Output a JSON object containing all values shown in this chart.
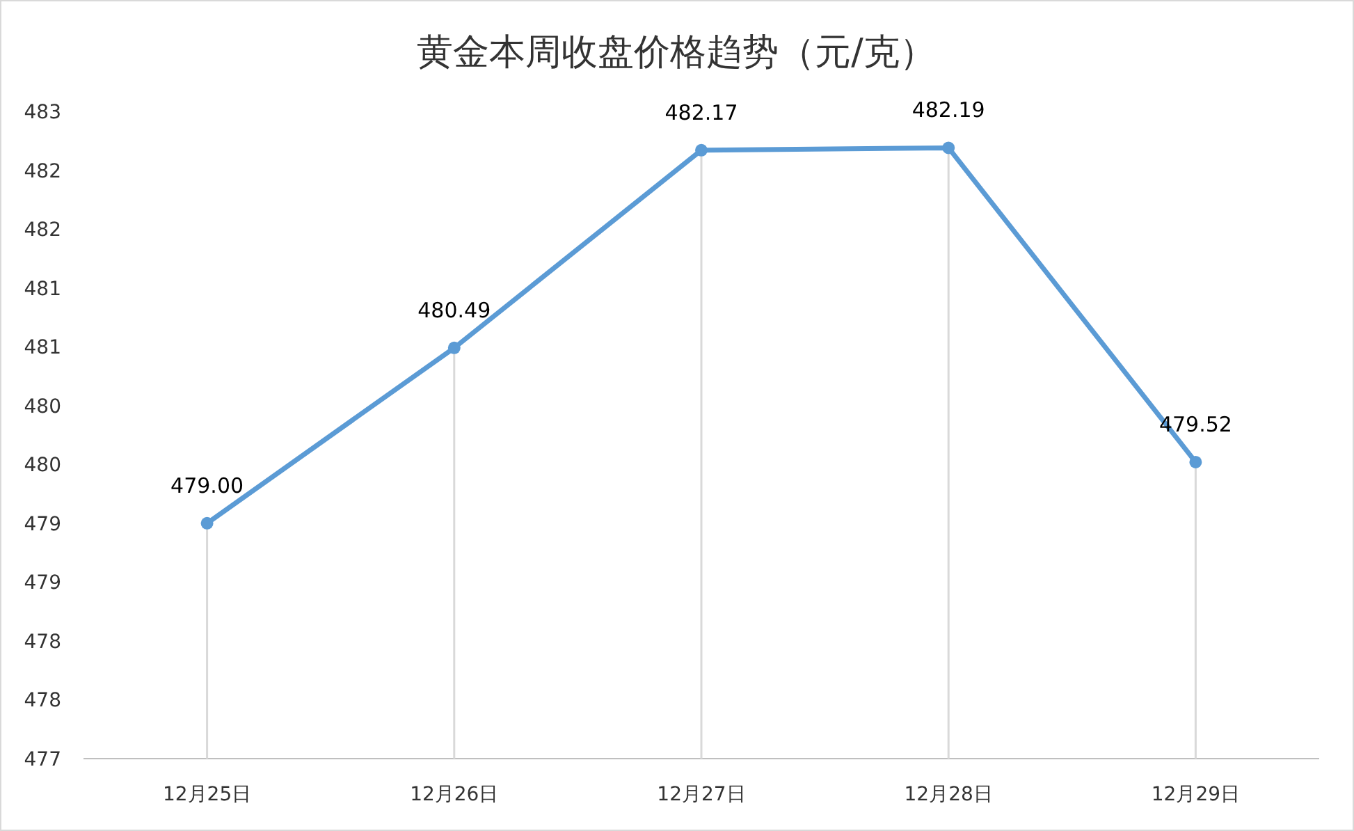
{
  "chart_data": {
    "type": "line",
    "title": "黄金本周收盘价格趋势（元/克）",
    "categories": [
      "12月25日",
      "12月26日",
      "12月27日",
      "12月28日",
      "12月29日"
    ],
    "series": [
      {
        "color": "#5b9bd5",
        "values": [
          479.0,
          480.49,
          482.17,
          482.19,
          479.52
        ]
      }
    ],
    "ylim": [
      477,
      482.5
    ],
    "yticks": [
      {
        "value": 477,
        "label": "477"
      },
      {
        "value": 477.5,
        "label": "478"
      },
      {
        "value": 478,
        "label": "478"
      },
      {
        "value": 478.5,
        "label": "479"
      },
      {
        "value": 479,
        "label": "479"
      },
      {
        "value": 479.5,
        "label": "480"
      },
      {
        "value": 480,
        "label": "480"
      },
      {
        "value": 480.5,
        "label": "481"
      },
      {
        "value": 481,
        "label": "481"
      },
      {
        "value": 481.5,
        "label": "482"
      },
      {
        "value": 482,
        "label": "482"
      },
      {
        "value": 482.5,
        "label": "483"
      }
    ],
    "value_labels": [
      "479.00",
      "480.49",
      "482.17",
      "482.19",
      "479.52"
    ],
    "marker": "circle",
    "line_style": "solid"
  }
}
